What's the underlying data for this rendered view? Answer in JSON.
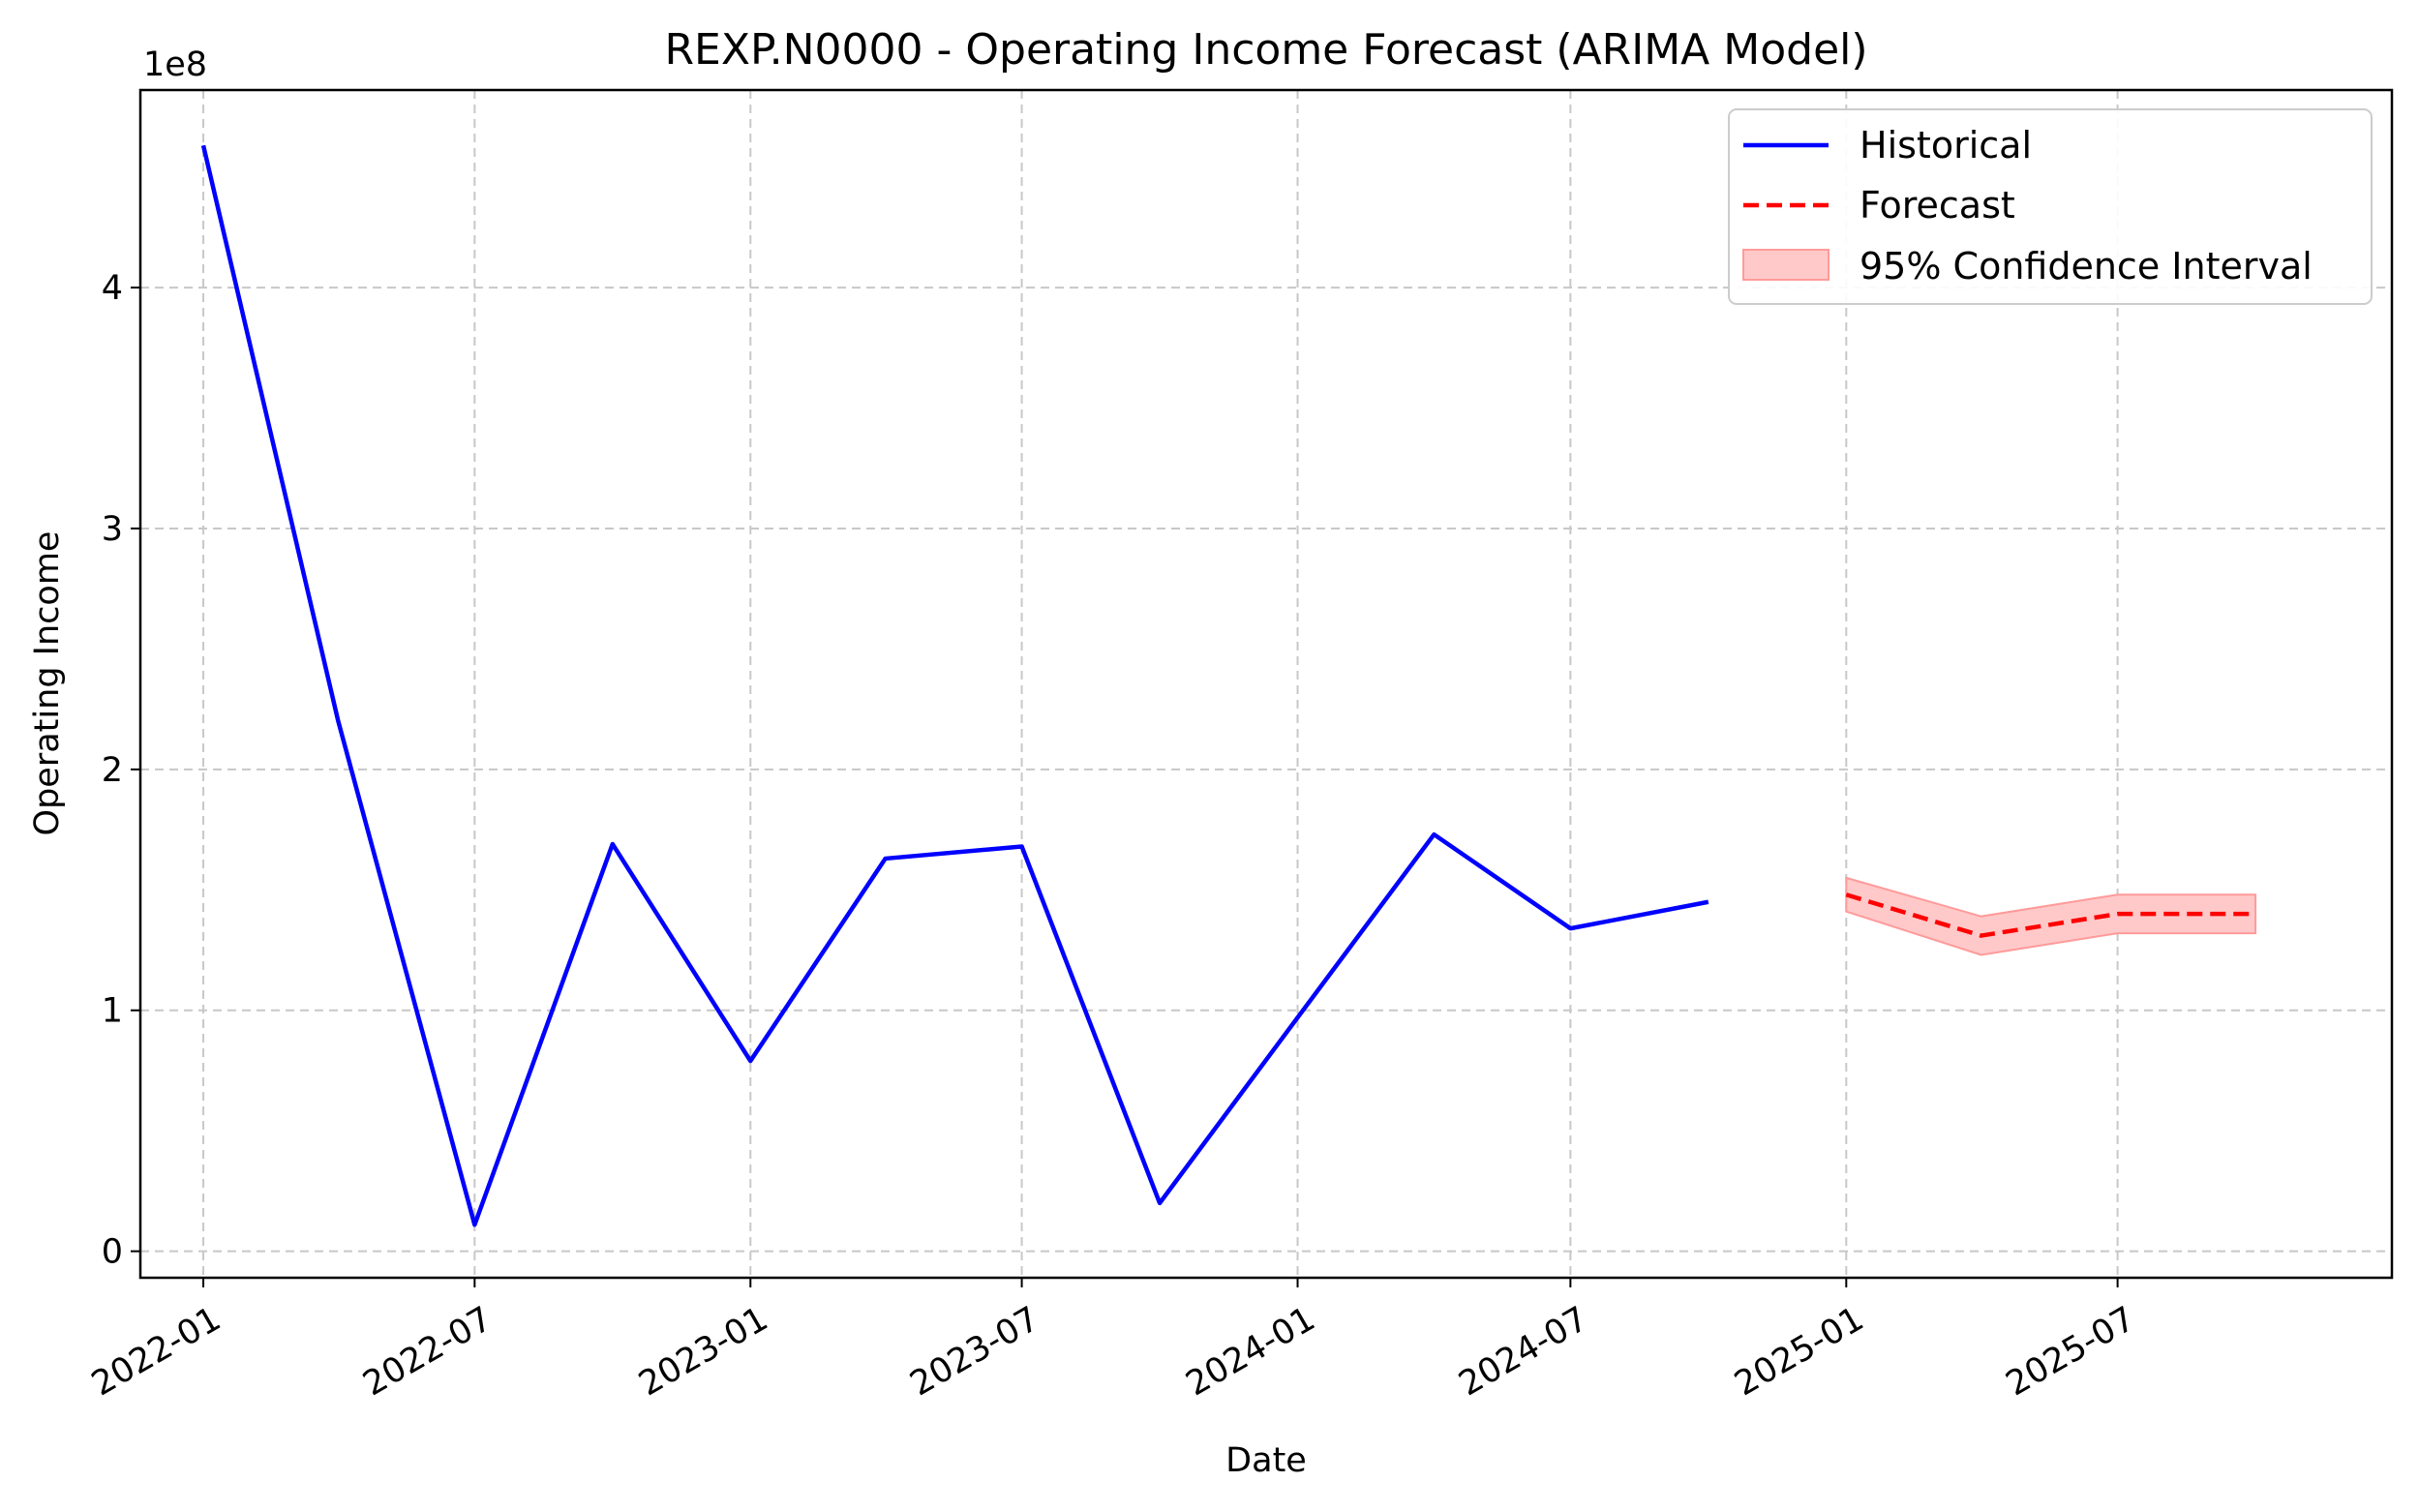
{
  "chart_data": {
    "type": "line",
    "title": "REXP.N0000 - Operating Income Forecast (ARIMA Model)",
    "xlabel": "Date",
    "ylabel": "Operating Income",
    "y_offset_label": "1e8",
    "y_scale": 100000000,
    "xlim": [
      "2021-11-20",
      "2025-12-31"
    ],
    "ylim": [
      -11000000,
      482000000
    ],
    "grid": true,
    "legend_position": "top-right",
    "x_ticks": [
      "2022-01-01",
      "2022-07-01",
      "2023-01-01",
      "2023-07-01",
      "2024-01-01",
      "2024-07-01",
      "2025-01-01",
      "2025-07-01"
    ],
    "x_tick_labels": [
      "2022-01",
      "2022-07",
      "2023-01",
      "2023-07",
      "2024-01",
      "2024-07",
      "2025-01",
      "2025-07"
    ],
    "y_ticks": [
      0,
      100000000,
      200000000,
      300000000,
      400000000
    ],
    "y_tick_labels": [
      "0",
      "1",
      "2",
      "3",
      "4"
    ],
    "series": [
      {
        "name": "Historical",
        "color": "#0000ff",
        "style": "solid",
        "x": [
          "2022-01-01",
          "2022-04-01",
          "2022-07-01",
          "2022-10-01",
          "2023-01-01",
          "2023-04-01",
          "2023-07-01",
          "2023-10-01",
          "2024-01-01",
          "2024-04-01",
          "2024-07-01",
          "2024-10-01"
        ],
        "values": [
          459000000,
          220000000,
          11000000,
          169000000,
          79000000,
          163000000,
          168000000,
          20000000,
          97000000,
          173000000,
          134000000,
          145000000
        ]
      },
      {
        "name": "Forecast",
        "color": "#ff0000",
        "style": "dashed",
        "x": [
          "2025-01-01",
          "2025-04-01",
          "2025-07-01",
          "2025-10-01"
        ],
        "values": [
          148000000,
          131000000,
          140000000,
          140000000
        ]
      }
    ],
    "confidence_interval": {
      "name": "95% Confidence Interval",
      "color": "#ffc9c9",
      "edge_color": "#ff9a9a",
      "x": [
        "2025-01-01",
        "2025-04-01",
        "2025-07-01",
        "2025-10-01"
      ],
      "lower": [
        141000000,
        123000000,
        132000000,
        132000000
      ],
      "upper": [
        155000000,
        139000000,
        148000000,
        148000000
      ]
    }
  }
}
